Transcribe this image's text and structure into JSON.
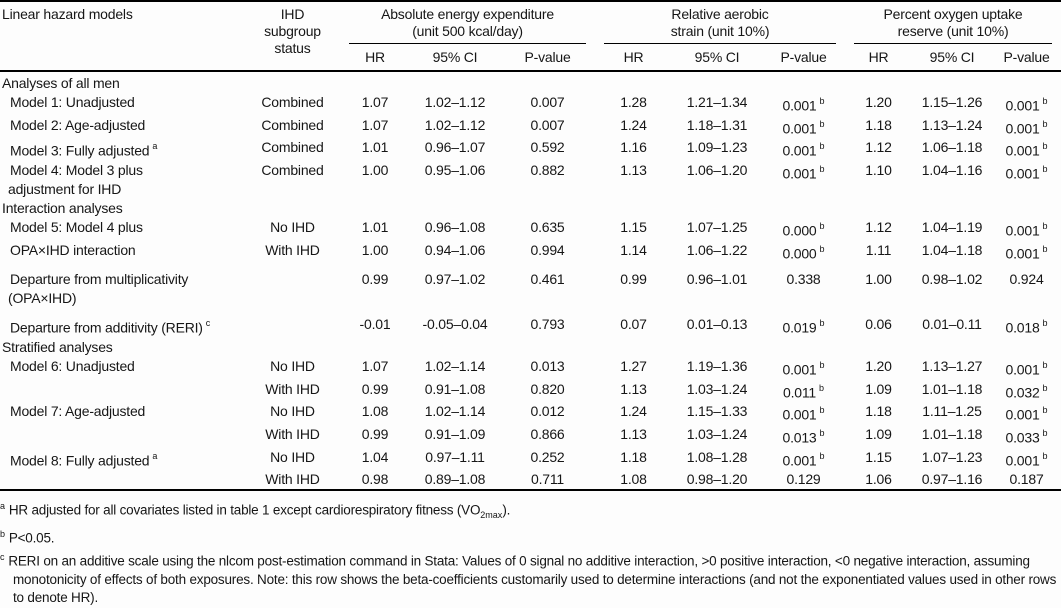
{
  "table": {
    "col1_header": "Linear hazard models",
    "col2_header_lines": [
      "IHD",
      "subgroup",
      "status"
    ],
    "groups": [
      {
        "title_lines": [
          "Absolute energy expenditure",
          "(unit 500 kcal/day)"
        ],
        "subcols": [
          "HR",
          "95% CI",
          "P-value"
        ]
      },
      {
        "title_lines": [
          "Relative aerobic",
          "strain (unit 10%)"
        ],
        "subcols": [
          "HR",
          "95% CI",
          "P-value"
        ]
      },
      {
        "title_lines": [
          "Percent oxygen uptake",
          "reserve (unit 10%)"
        ],
        "subcols": [
          "HR",
          "95% CI",
          "P-value"
        ]
      }
    ],
    "rows": [
      {
        "kind": "section",
        "label": "Analyses of all men"
      },
      {
        "kind": "data",
        "label": "Model 1: Unadjusted",
        "subgroup": "Combined",
        "cells": [
          "1.07",
          "1.02–1.12",
          "0.007",
          "1.28",
          "1.21–1.34",
          "0.001|b",
          "1.20",
          "1.15–1.26",
          "0.001|b"
        ]
      },
      {
        "kind": "data",
        "label": "Model 2: Age-adjusted",
        "subgroup": "Combined",
        "cells": [
          "1.07",
          "1.02–1.12",
          "0.007",
          "1.24",
          "1.18–1.31",
          "0.001|b",
          "1.18",
          "1.13–1.24",
          "0.001|b"
        ]
      },
      {
        "kind": "data",
        "label": "Model 3: Fully adjusted|a",
        "subgroup": "Combined",
        "cells": [
          "1.01",
          "0.96–1.07",
          "0.592",
          "1.16",
          "1.09–1.23",
          "0.001|b",
          "1.12",
          "1.06–1.18",
          "0.001|b"
        ]
      },
      {
        "kind": "data",
        "label": "Model 4: Model 3 plus",
        "label2": "adjustment for IHD",
        "subgroup": "Combined",
        "cells": [
          "1.00",
          "0.95–1.06",
          "0.882",
          "1.13",
          "1.06–1.20",
          "0.001|b",
          "1.10",
          "1.04–1.16",
          "0.001|b"
        ]
      },
      {
        "kind": "section",
        "label": "Interaction analyses"
      },
      {
        "kind": "data",
        "label": "Model 5: Model 4 plus",
        "subgroup": "No IHD",
        "cells": [
          "1.01",
          "0.96–1.08",
          "0.635",
          "1.15",
          "1.07–1.25",
          "0.000|b",
          "1.12",
          "1.04–1.19",
          "0.001|b"
        ]
      },
      {
        "kind": "data",
        "label": "OPA×IHD interaction",
        "subgroup": "With IHD",
        "cells": [
          "1.00",
          "0.94–1.06",
          "0.994",
          "1.14",
          "1.06–1.22",
          "0.000|b",
          "1.11",
          "1.04–1.18",
          "0.001|b"
        ]
      },
      {
        "kind": "data",
        "gap": true,
        "label": "Departure from multiplicativity",
        "label2": "(OPA×IHD)",
        "subgroup": "",
        "cells": [
          "0.99",
          "0.97–1.02",
          "0.461",
          "0.99",
          "0.96–1.01",
          "0.338",
          "1.00",
          "0.98–1.02",
          "0.924"
        ]
      },
      {
        "kind": "data",
        "gap": true,
        "label": "Departure from additivity (RERI)|c",
        "subgroup": "",
        "cells": [
          "-0.01",
          "-0.05–0.04",
          "0.793",
          "0.07",
          "0.01–0.13",
          "0.019|b",
          "0.06",
          "0.01–0.11",
          "0.018|b"
        ]
      },
      {
        "kind": "section",
        "label": "Stratified analyses"
      },
      {
        "kind": "data",
        "label": "Model 6: Unadjusted",
        "subgroup": "No IHD",
        "cells": [
          "1.07",
          "1.02–1.14",
          "0.013",
          "1.27",
          "1.19–1.36",
          "0.001|b",
          "1.20",
          "1.13–1.27",
          "0.001|b"
        ]
      },
      {
        "kind": "data",
        "label": "",
        "subgroup": "With IHD",
        "cells": [
          "0.99",
          "0.91–1.08",
          "0.820",
          "1.13",
          "1.03–1.24",
          "0.011|b",
          "1.09",
          "1.01–1.18",
          "0.032|b"
        ]
      },
      {
        "kind": "data",
        "label": "Model 7: Age-adjusted",
        "subgroup": "No IHD",
        "cells": [
          "1.08",
          "1.02–1.14",
          "0.012",
          "1.24",
          "1.15–1.33",
          "0.001|b",
          "1.18",
          "1.11–1.25",
          "0.001|b"
        ]
      },
      {
        "kind": "data",
        "label": "",
        "subgroup": "With IHD",
        "cells": [
          "0.99",
          "0.91–1.09",
          "0.866",
          "1.13",
          "1.03–1.24",
          "0.013|b",
          "1.09",
          "1.01–1.18",
          "0.033|b"
        ]
      },
      {
        "kind": "data",
        "label": "Model 8: Fully adjusted|a",
        "subgroup": "No IHD",
        "cells": [
          "1.04",
          "0.97–1.11",
          "0.252",
          "1.18",
          "1.08–1.28",
          "0.001|b",
          "1.15",
          "1.07–1.23",
          "0.001|b"
        ]
      },
      {
        "kind": "data",
        "label": "",
        "subgroup": "With IHD",
        "cells": [
          "0.98",
          "0.89–1.08",
          "0.711",
          "1.08",
          "0.98–1.20",
          "0.129",
          "1.06",
          "0.97–1.16",
          "0.187"
        ]
      }
    ]
  },
  "footnotes": {
    "a": {
      "marker": "a",
      "pre": "HR adjusted for all covariates listed in table 1 except cardiorespiratory fitness (VO",
      "sub": "2max",
      "post": ")."
    },
    "b": {
      "marker": "b",
      "text": "P<0.05."
    },
    "c": {
      "marker": "c",
      "text": "RERI on an additive scale using the nlcom post-estimation command in Stata: Values of 0 signal no additive interaction, >0 positive interaction, <0 negative interaction, assuming monotonicity of effects of both exposures. Note: this row shows the beta-coefficients customarily used to determine interactions (and not the exponentiated values used in other rows to denote HR)."
    }
  }
}
